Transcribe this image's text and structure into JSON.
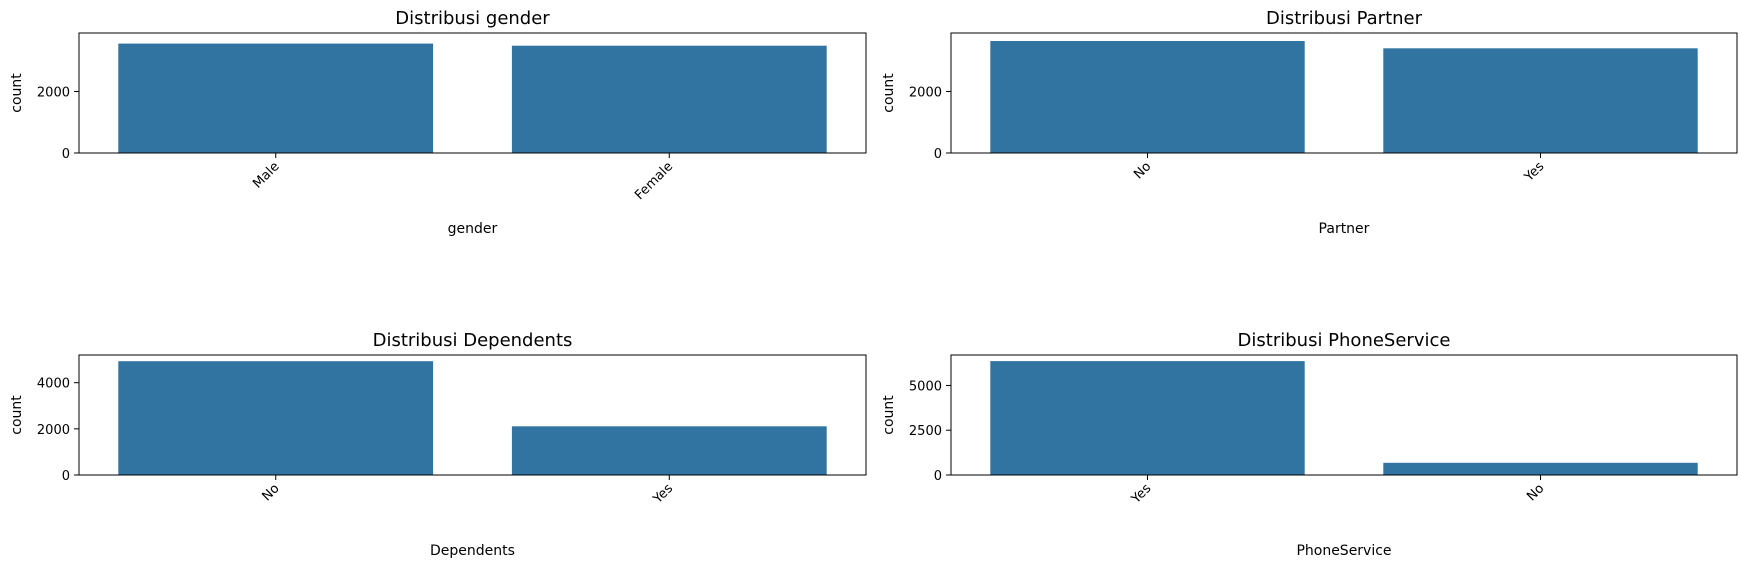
{
  "chart_data": [
    {
      "type": "bar",
      "title": "Distribusi gender",
      "xlabel": "gender",
      "ylabel": "count",
      "categories": [
        "Male",
        "Female"
      ],
      "values": [
        3555,
        3488
      ],
      "ylim": [
        0,
        3900
      ],
      "yticks": [
        0,
        2000
      ],
      "xtick_rotation": 45,
      "bar_color": "#3274a1",
      "grid": false
    },
    {
      "type": "bar",
      "title": "Distribusi Partner",
      "xlabel": "Partner",
      "ylabel": "count",
      "categories": [
        "No",
        "Yes"
      ],
      "values": [
        3641,
        3402
      ],
      "ylim": [
        0,
        3900
      ],
      "yticks": [
        0,
        2000
      ],
      "xtick_rotation": 45,
      "bar_color": "#3274a1",
      "grid": false
    },
    {
      "type": "bar",
      "title": "Distribusi Dependents",
      "xlabel": "Dependents",
      "ylabel": "count",
      "categories": [
        "No",
        "Yes"
      ],
      "values": [
        4933,
        2110
      ],
      "ylim": [
        0,
        5200
      ],
      "yticks": [
        0,
        2000,
        4000
      ],
      "xtick_rotation": 45,
      "bar_color": "#3274a1",
      "grid": false
    },
    {
      "type": "bar",
      "title": "Distribusi PhoneService",
      "xlabel": "PhoneService",
      "ylabel": "count",
      "categories": [
        "Yes",
        "No"
      ],
      "values": [
        6361,
        682
      ],
      "ylim": [
        0,
        6700
      ],
      "yticks": [
        0,
        2500,
        5000
      ],
      "xtick_rotation": 45,
      "bar_color": "#3274a1",
      "grid": false
    }
  ]
}
